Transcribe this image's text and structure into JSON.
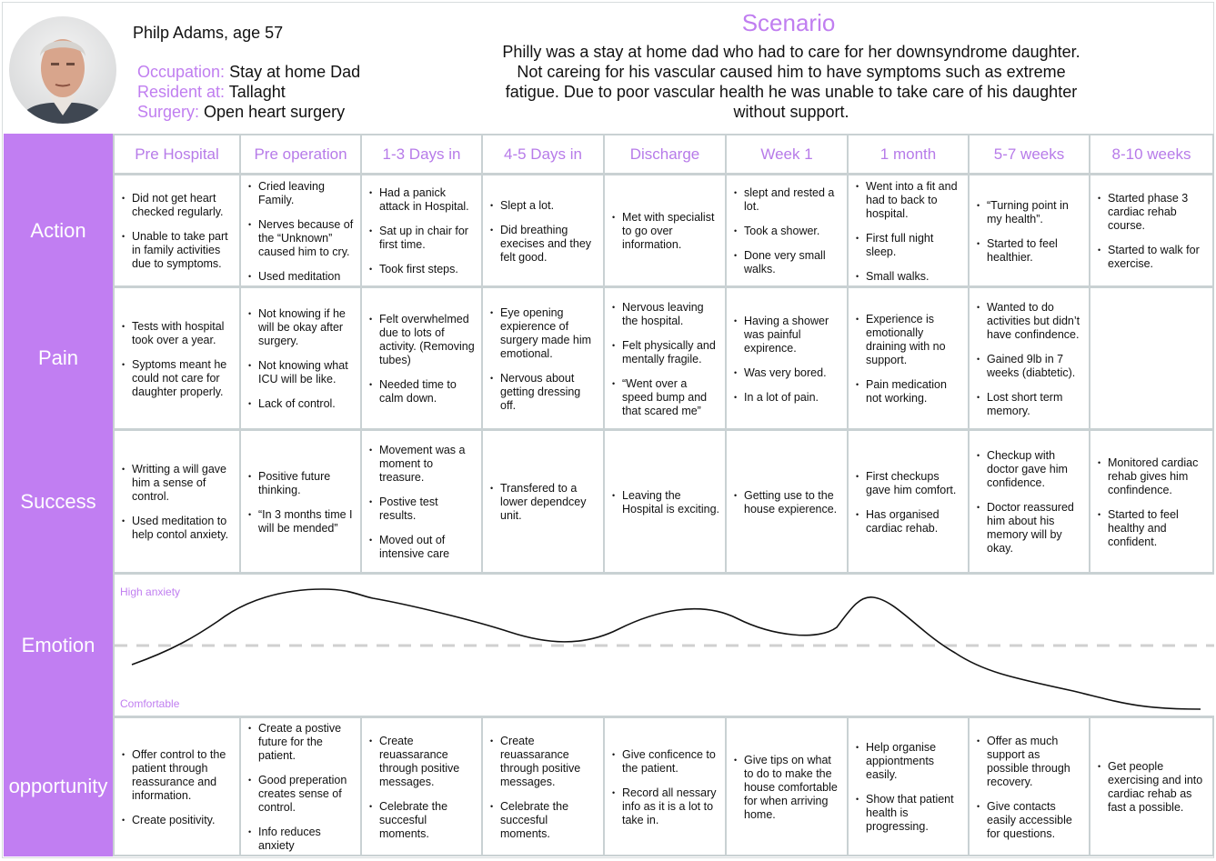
{
  "persona": {
    "name": "Philp Adams, age 57",
    "fields": [
      {
        "label": "Occupation:",
        "value": "Stay at home Dad"
      },
      {
        "label": "Resident at:",
        "value": "Tallaght"
      },
      {
        "label": "Surgery:",
        "value": "Open heart surgery"
      }
    ]
  },
  "scenario": {
    "title": "Scenario",
    "text": "Philly was a stay at home dad who had to care for her downsyndrome daughter. Not careing for his vascular caused him to have symptoms such as extreme fatigue. Due to poor vascular health he was unable to take care of his daughter without support."
  },
  "stages": [
    "Pre Hospital",
    "Pre operation",
    "1-3 Days in",
    "4-5 Days in",
    "Discharge",
    "Week 1",
    "1 month",
    "5-7 weeks",
    "8-10 weeks"
  ],
  "rows": [
    {
      "label": "Action",
      "cells": [
        [
          "Did not get heart checked regularly.",
          "Unable to take part in family activities due to symptoms."
        ],
        [
          "Cried leaving Family.",
          "Nerves because of the “Unknown” caused him to cry.",
          "Used meditation"
        ],
        [
          "Had a panick attack in Hospital.",
          "Sat up in chair for first time.",
          "Took first steps."
        ],
        [
          "Slept a lot.",
          "Did breathing execises and they felt good."
        ],
        [
          "Met with specialist to go over information."
        ],
        [
          "slept and rested a lot.",
          "Took a shower.",
          "Done very small walks."
        ],
        [
          "Went into a fit and had to back to hospital.",
          "First full night sleep.",
          "Small walks."
        ],
        [
          "“Turning point in my health”.",
          "Started to feel healthier."
        ],
        [
          "Started phase 3 cardiac rehab course.",
          "Started to walk for exercise."
        ]
      ]
    },
    {
      "label": "Pain",
      "cells": [
        [
          "Tests with hospital took over a year.",
          "Syptoms meant he could not care for daughter properly."
        ],
        [
          "Not knowing if he will be okay after surgery.",
          "Not knowing what ICU will be like.",
          "Lack of control."
        ],
        [
          "Felt overwhelmed due to lots of activity. (Removing tubes)",
          "Needed time to calm down."
        ],
        [
          "Eye opening expierence of surgery made him emotional.",
          "Nervous about getting dressing off."
        ],
        [
          "Nervous leaving the hospital.",
          "Felt physically and mentally fragile.",
          "“Went over a speed bump and that scared me”"
        ],
        [
          "Having a shower was painful expirence.",
          "Was very bored.",
          "In a lot of pain."
        ],
        [
          "Experience is emotionally draining with no support.",
          "Pain medication not working."
        ],
        [
          "Wanted to do activities but didn’t have confindence.",
          "Gained 9lb in 7 weeks (diabtetic).",
          "Lost short term memory."
        ],
        []
      ]
    },
    {
      "label": "Success",
      "cells": [
        [
          "Writting a will gave him a sense of control.",
          "Used meditation to help contol anxiety."
        ],
        [
          "Positive future thinking.",
          "“In 3 months time I will be mended”"
        ],
        [
          "Movement was a moment to treasure.",
          "Postive test results.",
          "Moved out of intensive care"
        ],
        [
          "Transfered to a lower dependcey unit."
        ],
        [
          "Leaving the Hospital is exciting."
        ],
        [
          "Getting use to the house expierence."
        ],
        [
          "First checkups gave him comfort.",
          "Has organised cardiac rehab."
        ],
        [
          "Checkup with doctor gave him confidence.",
          "Doctor reassured him about his memory will by okay."
        ],
        [
          "Monitored cardiac rehab gives him confindence.",
          "Started to feel healthy and confident."
        ]
      ]
    },
    {
      "label": "opportunity",
      "cells": [
        [
          "Offer control to the patient through reassurance and information.",
          "Create positivity."
        ],
        [
          "Create a postive future for the patient.",
          "Good preperation creates sense of control.",
          "Info reduces anxiety"
        ],
        [
          "Create reuassarance through positive messages.",
          "Celebrate the succesful moments."
        ],
        [
          "Create reuassarance through positive messages.",
          "Celebrate the succesful moments."
        ],
        [
          "Give conficence to the patient.",
          "Record all nessary info as it is a lot to take in."
        ],
        [
          "Give tips on what to do to make the house comfortable for when arriving home."
        ],
        [
          "Help organise appiontments easily.",
          "Show that patient health is progressing."
        ],
        [
          "Offer as much support as possible through recovery.",
          "Give contacts easily accessible for questions."
        ],
        [
          "Get people exercising and into cardiac rehab as fast a possible."
        ]
      ]
    }
  ],
  "emotion": {
    "label": "Emotion",
    "high": "High anxiety",
    "low": "Comfortable"
  }
}
